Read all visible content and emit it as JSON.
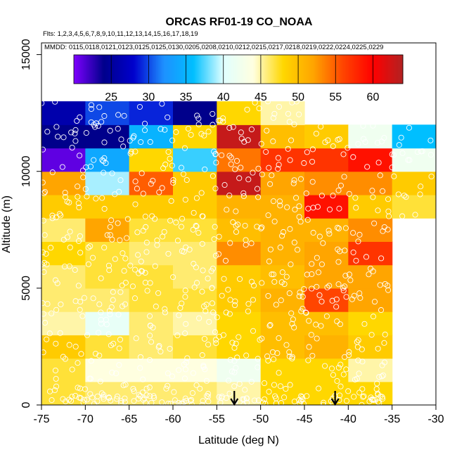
{
  "chart_data": {
    "type": "heatmap",
    "title": "ORCAS RF01-19 CO_NOAA",
    "flights_text": "Flts: 1,2,3,4,5,6,7,8,9,10,11,12,13,14,15,16,17,18,19",
    "dates_text": "MMDD: 0115,0118,0121,0123,0125,0125,0130,0205,0208,0210,0212,0215,0217,0218,0219,0222,0224,0225,0229",
    "xlabel": "Latitude (deg N)",
    "ylabel": "Altitude (m)",
    "xlim": [
      -75,
      -30
    ],
    "ylim": [
      0,
      15500
    ],
    "x_ticks": [
      -75,
      -70,
      -65,
      -60,
      -55,
      -50,
      -45,
      -40,
      -35,
      -30
    ],
    "x_tick_labels": [
      "-75",
      "-70",
      "-65",
      "-60",
      "-55",
      "-50",
      "-45",
      "-40",
      "-35",
      "-30"
    ],
    "y_ticks": [
      0,
      5000,
      10000,
      15000
    ],
    "y_tick_labels": [
      "0",
      "5000",
      "10000",
      "15000"
    ],
    "colorbar": {
      "range": [
        20,
        64
      ],
      "ticks": [
        25,
        30,
        35,
        40,
        45,
        50,
        55,
        60
      ],
      "tick_labels": [
        "25",
        "30",
        "35",
        "40",
        "45",
        "50",
        "55",
        "60"
      ],
      "colors": [
        "#7f00ff",
        "#00008b",
        "#0000cd",
        "#1e90ff",
        "#00bfff",
        "#e0ffff",
        "#ffffe0",
        "#ffd700",
        "#ffa500",
        "#ff4500",
        "#ff0000",
        "#b22222"
      ]
    },
    "lat_bins": [
      -75,
      -70,
      -65,
      -60,
      -55,
      -50,
      -45,
      -40,
      -35,
      -30
    ],
    "alt_bin_size": 1000,
    "grid_rows": [
      {
        "alt": 0,
        "values": [
          47,
          46,
          46,
          46,
          45,
          48,
          48,
          48,
          null
        ]
      },
      {
        "alt": 1000,
        "values": [
          47,
          44,
          44,
          44,
          42,
          48,
          48,
          45,
          null
        ]
      },
      {
        "alt": 2000,
        "values": [
          49,
          47,
          46,
          47,
          48,
          50,
          51,
          49,
          null
        ]
      },
      {
        "alt": 3000,
        "values": [
          45,
          41,
          46,
          45,
          48,
          50,
          50,
          48,
          null
        ]
      },
      {
        "alt": 4000,
        "values": [
          46,
          46,
          47,
          47,
          49,
          51,
          56,
          52,
          null
        ]
      },
      {
        "alt": 5000,
        "values": [
          46,
          47,
          47,
          46,
          49,
          50,
          52,
          52,
          null
        ]
      },
      {
        "alt": 6000,
        "values": [
          48,
          47,
          46,
          46,
          53,
          51,
          52,
          57,
          null
        ]
      },
      {
        "alt": 7000,
        "values": [
          46,
          52,
          47,
          47,
          50,
          51,
          51,
          53,
          null
        ]
      },
      {
        "alt": 8000,
        "values": [
          49,
          49,
          49,
          49,
          51,
          51,
          59,
          49,
          47
        ]
      },
      {
        "alt": 9000,
        "values": [
          52,
          39,
          55,
          49,
          63,
          52,
          53,
          53,
          49
        ]
      },
      {
        "alt": 10000,
        "values": [
          21,
          34,
          48,
          37,
          54,
          57,
          57,
          59,
          42
        ]
      },
      {
        "alt": 11000,
        "values": [
          24,
          24,
          35,
          48,
          63,
          50,
          49,
          42,
          36
        ]
      },
      {
        "alt": 12000,
        "values": [
          26,
          30,
          29,
          24,
          48,
          45,
          null,
          null,
          null
        ]
      }
    ],
    "flight_marker_lats": [
      -53,
      -41.5
    ],
    "point_style": "white open circles marking individual observations"
  }
}
